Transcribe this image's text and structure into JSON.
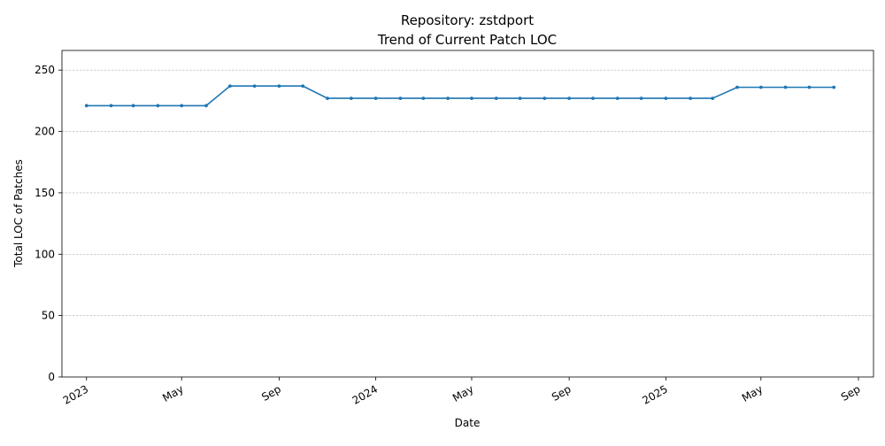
{
  "chart_data": {
    "type": "line",
    "title": "Repository: zstdport",
    "subtitle": "Trend of Current Patch LOC",
    "xlabel": "Date",
    "ylabel": "Total LOC of Patches",
    "ylim": [
      0,
      266
    ],
    "xlim": [
      "2022-12-01",
      "2025-09-20"
    ],
    "grid": "horizontal-dashed",
    "x_ticks": [
      {
        "date": "2023-01-01",
        "label": "2023"
      },
      {
        "date": "2023-05-01",
        "label": "May"
      },
      {
        "date": "2023-09-01",
        "label": "Sep"
      },
      {
        "date": "2024-01-01",
        "label": "2024"
      },
      {
        "date": "2024-05-01",
        "label": "May"
      },
      {
        "date": "2024-09-01",
        "label": "Sep"
      },
      {
        "date": "2025-01-01",
        "label": "2025"
      },
      {
        "date": "2025-05-01",
        "label": "May"
      },
      {
        "date": "2025-09-01",
        "label": "Sep"
      }
    ],
    "y_ticks": [
      0,
      50,
      100,
      150,
      200,
      250
    ],
    "color": "#1f77b4",
    "series": [
      {
        "name": "",
        "x": [
          "2023-01-01",
          "2023-02-01",
          "2023-03-01",
          "2023-04-01",
          "2023-05-01",
          "2023-06-01",
          "2023-07-01",
          "2023-08-01",
          "2023-09-01",
          "2023-10-01",
          "2023-11-01",
          "2023-12-01",
          "2024-01-01",
          "2024-02-01",
          "2024-03-01",
          "2024-04-01",
          "2024-05-01",
          "2024-06-01",
          "2024-07-01",
          "2024-08-01",
          "2024-09-01",
          "2024-10-01",
          "2024-11-01",
          "2024-12-01",
          "2025-01-01",
          "2025-02-01",
          "2025-03-01",
          "2025-04-01",
          "2025-05-01",
          "2025-06-01",
          "2025-07-01",
          "2025-08-01"
        ],
        "values": [
          221,
          221,
          221,
          221,
          221,
          221,
          237,
          237,
          237,
          237,
          227,
          227,
          227,
          227,
          227,
          227,
          227,
          227,
          227,
          227,
          227,
          227,
          227,
          227,
          227,
          227,
          227,
          236,
          236,
          236,
          236,
          236
        ]
      }
    ]
  }
}
